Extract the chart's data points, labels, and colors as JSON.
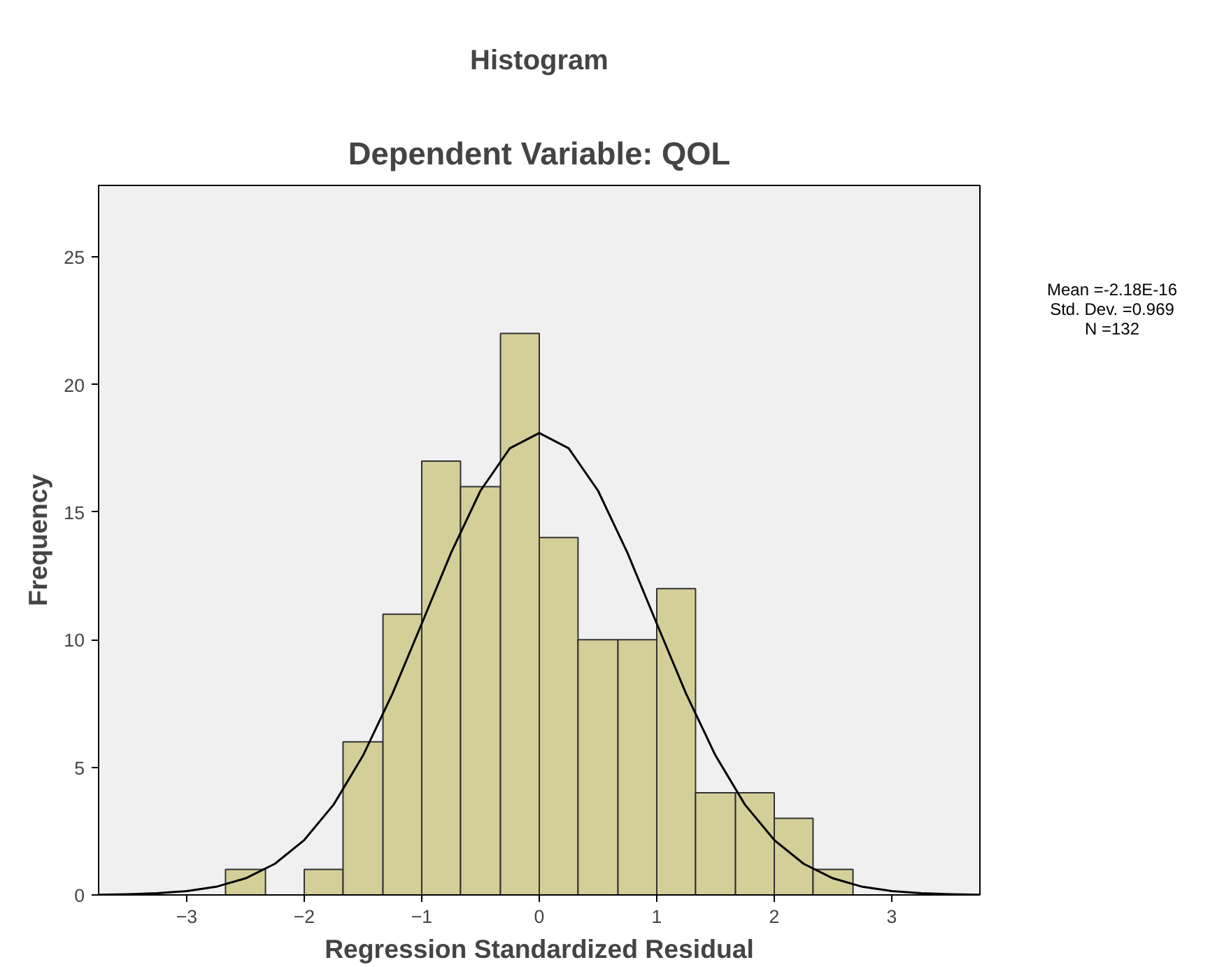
{
  "chart_data": {
    "type": "histogram",
    "title": "Histogram",
    "subtitle": "Dependent Variable: QOL",
    "xlabel": "Regression Standardized Residual",
    "ylabel": "Frequency",
    "bins": [
      -2.67,
      -2.33,
      -2.0,
      -1.67,
      -1.33,
      -1.0,
      -0.67,
      -0.33,
      0,
      0.33,
      0.67,
      1.0,
      1.33,
      1.67,
      2.0,
      2.33,
      2.67
    ],
    "xlim": [
      -3.75,
      3.75
    ],
    "ylim": [
      0,
      27.8
    ],
    "xticks": [
      -3,
      -2,
      -1,
      0,
      1,
      2,
      3
    ],
    "yticks": [
      0,
      5,
      10,
      15,
      20,
      25
    ],
    "series": [
      {
        "color": "#d4cf98",
        "values": [
          1,
          0,
          1,
          6,
          11,
          17,
          16,
          22,
          14,
          10,
          10,
          12,
          4,
          4,
          3,
          1
        ]
      },
      {
        "type": "line",
        "color": "#000000",
        "x": [
          -3.75,
          -3.5,
          -3.25,
          -3.0,
          -2.75,
          -2.5,
          -2.25,
          -2.0,
          -1.75,
          -1.5,
          -1.25,
          -1.0,
          -0.75,
          -0.5,
          -0.25,
          0,
          0.25,
          0.5,
          0.75,
          1.0,
          1.25,
          1.5,
          1.75,
          2.0,
          2.25,
          2.5,
          2.75,
          3.0,
          3.25,
          3.5,
          3.75
        ],
        "values": [
          0.01,
          0.03,
          0.07,
          0.15,
          0.32,
          0.65,
          1.22,
          2.15,
          3.54,
          5.46,
          7.88,
          10.63,
          13.41,
          15.84,
          17.5,
          18.1,
          17.5,
          15.84,
          13.41,
          10.63,
          7.88,
          5.46,
          3.54,
          2.15,
          1.22,
          0.65,
          0.32,
          0.15,
          0.07,
          0.03,
          0.01
        ]
      }
    ],
    "annotations": [
      "Mean =-2.18E-16",
      "Std. Dev. =0.969",
      "N =132"
    ]
  }
}
